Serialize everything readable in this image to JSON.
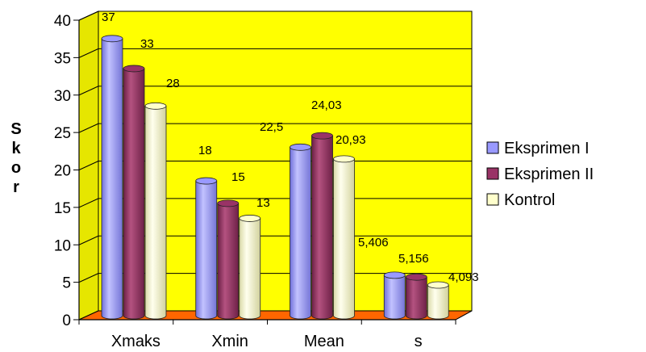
{
  "chart_data": {
    "type": "bar",
    "title": "",
    "xlabel": "",
    "ylabel": "Skor",
    "ylim": [
      0,
      40
    ],
    "yticks": [
      0,
      5,
      10,
      15,
      20,
      25,
      30,
      35,
      40
    ],
    "grid": true,
    "legend_position": "right",
    "categories": [
      "Xmaks",
      "Xmin",
      "Mean",
      "s"
    ],
    "series": [
      {
        "name": "Eksprimen I",
        "color": "#9999ff",
        "values": [
          37,
          18,
          22.5,
          5.406
        ],
        "labels": [
          "37",
          "18",
          "22,5",
          "5,406"
        ]
      },
      {
        "name": "Eksprimen II",
        "color": "#993366",
        "values": [
          33,
          15,
          24.03,
          5.156
        ],
        "labels": [
          "33",
          "15",
          "24,03",
          "5,156"
        ]
      },
      {
        "name": "Kontrol",
        "color": "#ffffcc",
        "values": [
          28,
          13,
          20.93,
          4.093
        ],
        "labels": [
          "28",
          "13",
          "20,93",
          "4,093"
        ]
      }
    ],
    "colors": {
      "wall": "#ffff00",
      "floor": "#ff6600",
      "grid": "#000000"
    }
  }
}
